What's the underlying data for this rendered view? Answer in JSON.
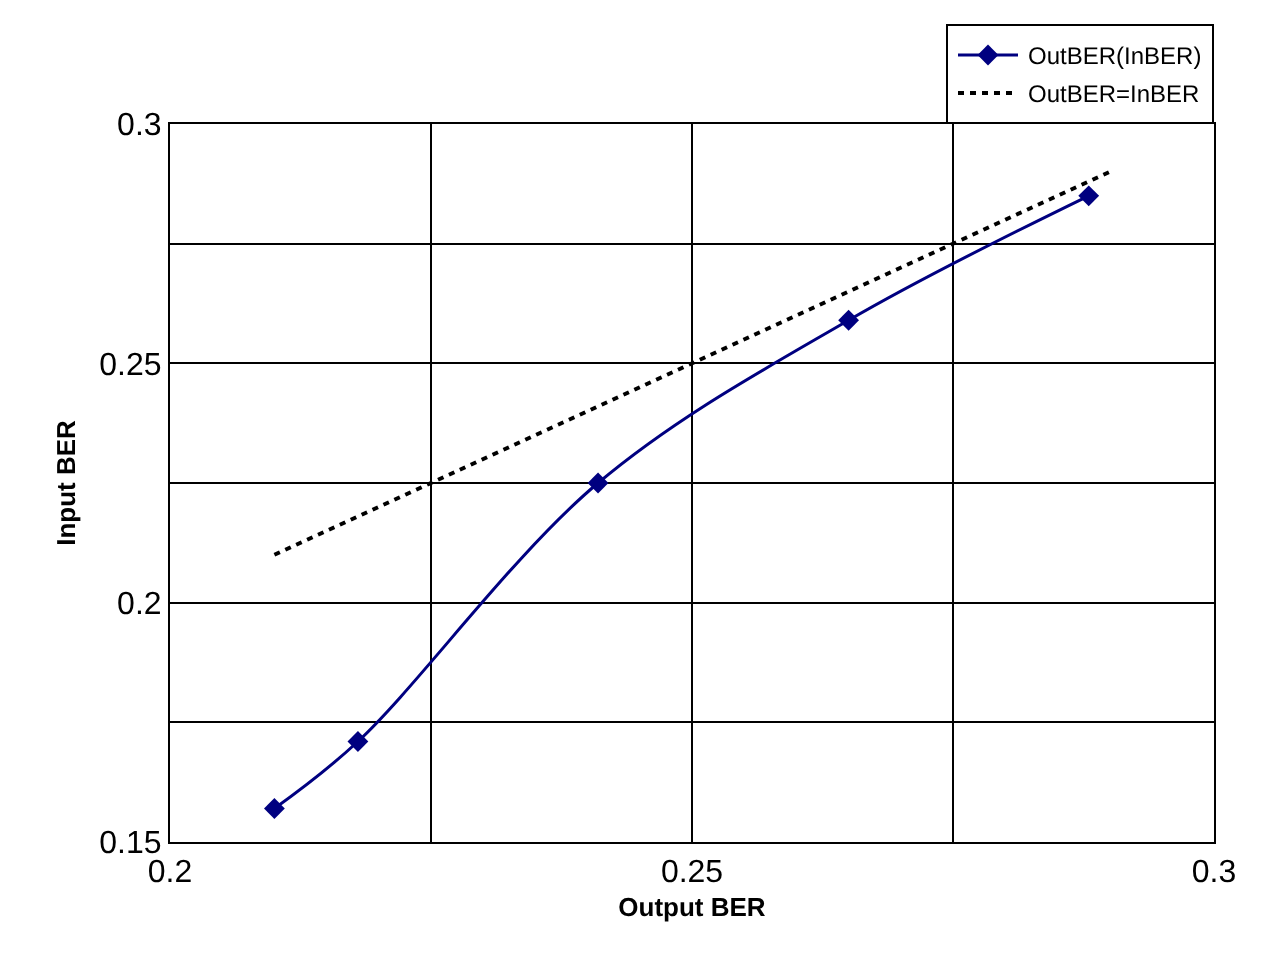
{
  "chart_data": {
    "type": "line",
    "xlabel": "Output BER",
    "ylabel": "Input BER",
    "xlim": [
      0.2,
      0.3
    ],
    "xticks": [
      0.2,
      {
        "value": 0.225,
        "label": null
      },
      0.25,
      {
        "value": 0.275,
        "label": null
      },
      0.3
    ],
    "ylim": [
      0.15,
      0.3
    ],
    "yticks": [
      0.15,
      {
        "value": 0.175,
        "label": null
      },
      0.2,
      {
        "value": 0.225,
        "label": null
      },
      0.25,
      {
        "value": 0.275,
        "label": null
      },
      0.3
    ],
    "grid": true,
    "legend": "top right",
    "series": [
      {
        "name": "OutBER(InBER)",
        "color": "#000080",
        "x": [
          0.21,
          0.218,
          0.241,
          0.265,
          0.288
        ],
        "values": [
          0.157,
          0.171,
          0.225,
          0.259,
          0.285
        ],
        "marker": "diamond",
        "line_style": "solid"
      },
      {
        "name": "OutBER=InBER",
        "color": "#000000",
        "x": [
          0.21,
          0.29
        ],
        "values": [
          0.21,
          0.29
        ],
        "marker": "none",
        "line_style": "dotted"
      }
    ]
  }
}
